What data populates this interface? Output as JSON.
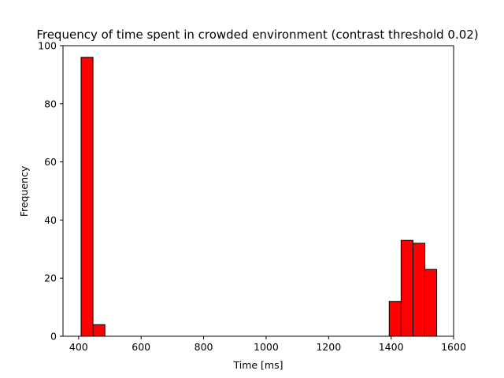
{
  "chart_data": {
    "type": "bar",
    "title": "Frequency of time spent in crowded environment (contrast threshold 0.02)",
    "xlabel": "Time [ms]",
    "ylabel": "Frequency",
    "xlim": [
      350,
      1600
    ],
    "ylim": [
      0,
      100
    ],
    "xticks": [
      400,
      600,
      800,
      1000,
      1200,
      1400,
      1600
    ],
    "yticks": [
      0,
      20,
      40,
      60,
      80,
      100
    ],
    "grid": false,
    "bin_edges": [
      408,
      446,
      484,
      1394,
      1432,
      1470,
      1508,
      1546
    ],
    "bins": [
      {
        "x0": 408,
        "x1": 446,
        "value": 96
      },
      {
        "x0": 446,
        "x1": 484,
        "value": 4
      },
      {
        "x0": 1394,
        "x1": 1432,
        "value": 12
      },
      {
        "x0": 1432,
        "x1": 1470,
        "value": 33
      },
      {
        "x0": 1470,
        "x1": 1508,
        "value": 32
      },
      {
        "x0": 1508,
        "x1": 1546,
        "value": 23
      }
    ],
    "colors": {
      "bar_fill": "#ff0000",
      "bar_edge": "#000000"
    }
  }
}
